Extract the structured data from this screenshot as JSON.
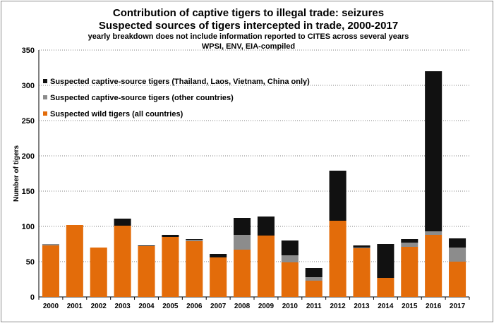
{
  "chart_data": {
    "type": "bar",
    "stacked": true,
    "title": "Contribution of captive tigers to illegal trade: seizures",
    "subtitle": "Suspected sources of tigers intercepted in trade, 2000-2017",
    "note": "yearly breakdown does not include information reported to CITES across several years",
    "source": "WPSI, ENV, EIA-compiled",
    "xlabel": "",
    "ylabel": "Number of tigers",
    "ylim": [
      0,
      350
    ],
    "yticks": [
      0,
      50,
      100,
      150,
      200,
      250,
      300,
      350
    ],
    "grid": "horizontal dotted",
    "legend_position": "top-left",
    "categories": [
      "2000",
      "2001",
      "2002",
      "2003",
      "2004",
      "2005",
      "2006",
      "2007",
      "2008",
      "2009",
      "2010",
      "2011",
      "2012",
      "2013",
      "2014",
      "2015",
      "2016",
      "2017"
    ],
    "series": [
      {
        "name": "Suspected wild tigers (all countries)",
        "color": "#e36c0a",
        "values": [
          73,
          102,
          70,
          101,
          72,
          85,
          79,
          56,
          67,
          87,
          49,
          23,
          108,
          69,
          27,
          71,
          88,
          50
        ]
      },
      {
        "name": "Suspected captive-source tigers (other countries)",
        "color": "#8c8c8c",
        "values": [
          2,
          0,
          0,
          0,
          0,
          0,
          2,
          0,
          21,
          0,
          10,
          5,
          0,
          1,
          0,
          6,
          5,
          20
        ]
      },
      {
        "name": "Suspected captive-source tigers (Thailand, Laos, Vietnam, China only)",
        "color": "#111111",
        "values": [
          0,
          0,
          0,
          10,
          1,
          3,
          1,
          5,
          24,
          27,
          21,
          13,
          71,
          3,
          48,
          5,
          227,
          13
        ]
      }
    ],
    "legend_order": [
      2,
      1,
      0
    ]
  }
}
